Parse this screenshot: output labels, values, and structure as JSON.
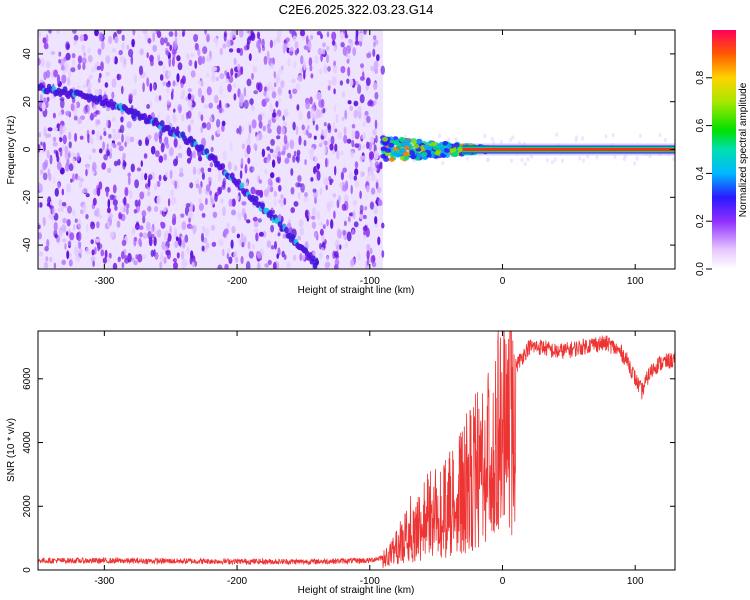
{
  "title": "C2E6.2025.322.03.23.G14",
  "chart_data": [
    {
      "type": "heatmap",
      "xlabel": "Height of straight line (km)",
      "ylabel": "Frequency (Hz)",
      "xlim": [
        -350,
        130
      ],
      "ylim": [
        -50,
        50
      ],
      "x_ticks": [
        -300,
        -200,
        -100,
        0,
        100
      ],
      "y_ticks": [
        -40,
        -20,
        0,
        20,
        40
      ],
      "features": {
        "noise_region_x": [
          -350,
          -90
        ],
        "diagonal_trace": {
          "x": [
            -350,
            -330,
            -300,
            -260,
            -230,
            -200,
            -170,
            -140
          ],
          "y": [
            26,
            24,
            20,
            11,
            2,
            -14,
            -30,
            -48
          ]
        },
        "carrier_band": {
          "x_start": -90,
          "x_end": 130,
          "y": 0
        }
      },
      "colorbar": {
        "label": "Normalized spectral amplitude",
        "range": [
          0.0,
          1.0
        ],
        "ticks": [
          0.0,
          0.2,
          0.4,
          0.6,
          0.8
        ]
      }
    },
    {
      "type": "line",
      "xlabel": "Height of straight line (km)",
      "ylabel": "SNR (10 * v/v)",
      "xlim": [
        -350,
        130
      ],
      "ylim": [
        0,
        7500
      ],
      "x_ticks": [
        -300,
        -200,
        -100,
        0,
        100
      ],
      "y_ticks": [
        0,
        2000,
        4000,
        6000
      ],
      "series": [
        {
          "name": "SNR",
          "color": "#ee3333",
          "x": [
            -350,
            -300,
            -250,
            -200,
            -150,
            -100,
            -90,
            -80,
            -70,
            -60,
            -50,
            -40,
            -30,
            -20,
            -10,
            0,
            10,
            20,
            30,
            40,
            50,
            60,
            70,
            80,
            90,
            95,
            100,
            105,
            110,
            115,
            120,
            130
          ],
          "y": [
            300,
            290,
            280,
            270,
            260,
            300,
            400,
            800,
            1500,
            1900,
            2200,
            2400,
            3000,
            3600,
            4300,
            5400,
            6400,
            7000,
            7000,
            6850,
            6900,
            7000,
            7100,
            7100,
            6800,
            6500,
            6000,
            5600,
            6100,
            6400,
            6500,
            6600
          ]
        }
      ]
    }
  ]
}
